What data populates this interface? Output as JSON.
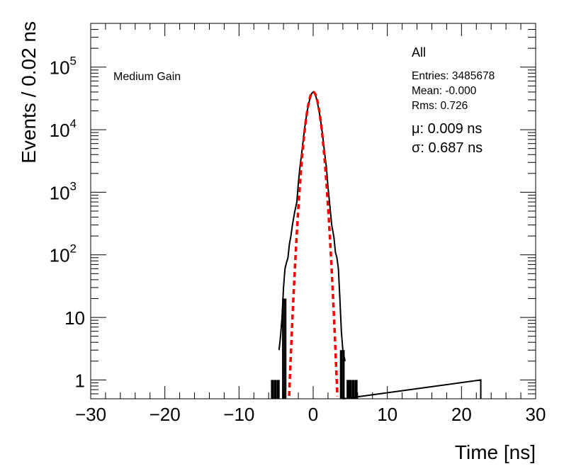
{
  "chart_data": {
    "type": "line",
    "xlabel": "Time [ns]",
    "ylabel": "Events / 0.02 ns",
    "xlim": [
      -30,
      30
    ],
    "ylim": [
      0.5,
      500000
    ],
    "y_scale": "log",
    "x_ticks": [
      -30,
      -20,
      -10,
      0,
      10,
      20,
      30
    ],
    "x_tick_labels": [
      "−30",
      "−20",
      "−10",
      "0",
      "10",
      "20",
      "30"
    ],
    "y_ticks": [
      {
        "value": 1,
        "base": "1",
        "exp": ""
      },
      {
        "value": 10,
        "base": "10",
        "exp": ""
      },
      {
        "value": 100,
        "base": "10",
        "exp": "2"
      },
      {
        "value": 1000,
        "base": "10",
        "exp": "3"
      },
      {
        "value": 10000,
        "base": "10",
        "exp": "4"
      },
      {
        "value": 100000,
        "base": "10",
        "exp": "5"
      }
    ],
    "annotation": "Medium Gain",
    "stats": {
      "title": "All",
      "entries": "Entries: 3485678",
      "mean": "Mean: -0.000",
      "rms": "Rms: 0.726",
      "mu": "μ: 0.009 ns",
      "sigma": "σ: 0.687 ns"
    },
    "series": [
      {
        "style": "histogram",
        "color": "#000000",
        "x": [
          -5.6,
          -5.2,
          -4.8,
          -4.6,
          -4.4,
          -4.2,
          -4.0,
          -3.8,
          -3.6,
          -3.4,
          -3.2,
          -3.0,
          -2.8,
          -2.5,
          -2.2,
          -2.0,
          -1.8,
          -1.5,
          -1.2,
          -1.0,
          -0.8,
          -0.6,
          -0.4,
          -0.2,
          0.0,
          0.2,
          0.4,
          0.6,
          0.8,
          1.0,
          1.2,
          1.5,
          1.8,
          2.0,
          2.2,
          2.5,
          2.8,
          3.0,
          3.2,
          3.4,
          3.6,
          3.8,
          4.0,
          4.3,
          4.6,
          4.9,
          5.3,
          5.7,
          22.6
        ],
        "y": [
          1,
          1,
          1,
          3,
          5,
          10,
          30,
          60,
          75,
          90,
          150,
          200,
          300,
          480,
          700,
          1400,
          2400,
          4700,
          9500,
          14000,
          20000,
          26000,
          33000,
          38000,
          40000,
          38000,
          33000,
          26000,
          20000,
          14000,
          9500,
          4700,
          2400,
          1200,
          700,
          300,
          190,
          110,
          90,
          60,
          20,
          6,
          3,
          2,
          1,
          1,
          1,
          1,
          1
        ]
      },
      {
        "style": "gaussian-fit",
        "color": "#ff0000",
        "amplitude": 40000,
        "mu": 0.009,
        "sigma": 0.687
      }
    ]
  }
}
